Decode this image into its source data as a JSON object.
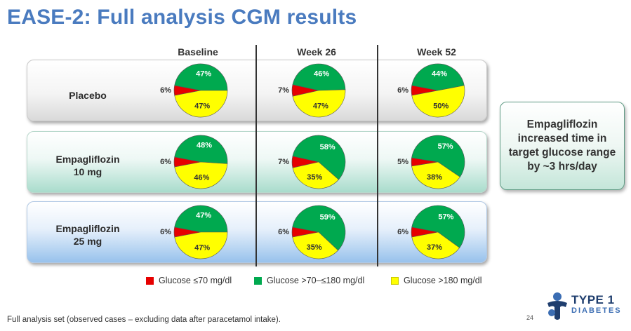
{
  "title": "EASE-2: Full analysis CGM results",
  "chart_data": {
    "type": "pie",
    "columns": [
      "Baseline",
      "Week 26",
      "Week 52"
    ],
    "rows": [
      "Placebo",
      "Empagliflozin 10 mg",
      "Empagliflozin 25 mg"
    ],
    "categories": [
      "Glucose ≤70 mg/dl",
      "Glucose >70–≤180 mg/dl",
      "Glucose >180 mg/dl"
    ],
    "colors": [
      "#e60000",
      "#00a94f",
      "#ffff00"
    ],
    "pies": [
      [
        [
          6,
          47,
          47
        ],
        [
          7,
          46,
          47
        ],
        [
          6,
          44,
          50
        ]
      ],
      [
        [
          6,
          48,
          46
        ],
        [
          7,
          58,
          35
        ],
        [
          5,
          57,
          38
        ]
      ],
      [
        [
          6,
          47,
          47
        ],
        [
          6,
          59,
          35
        ],
        [
          6,
          57,
          37
        ]
      ]
    ]
  },
  "header": {
    "col_baseline": "Baseline",
    "col_week26": "Week 26",
    "col_week52": "Week 52"
  },
  "row_labels": {
    "placebo": "Placebo",
    "empa10_line1": "Empagliflozin",
    "empa10_line2": "10 mg",
    "empa25_line1": "Empagliflozin",
    "empa25_line2": "25 mg"
  },
  "callout": "Empagliflozin increased time in target glucose range by ~3 hrs/day",
  "legend": {
    "low": "Glucose ≤70 mg/dl",
    "target": "Glucose >70–≤180 mg/dl",
    "high": "Glucose >180 mg/dl"
  },
  "footnote": "Full analysis set (observed cases – excluding data after paracetamol intake).",
  "page_number": "24",
  "logo": {
    "line1": "TYPE 1",
    "line2": "DIABETES"
  }
}
